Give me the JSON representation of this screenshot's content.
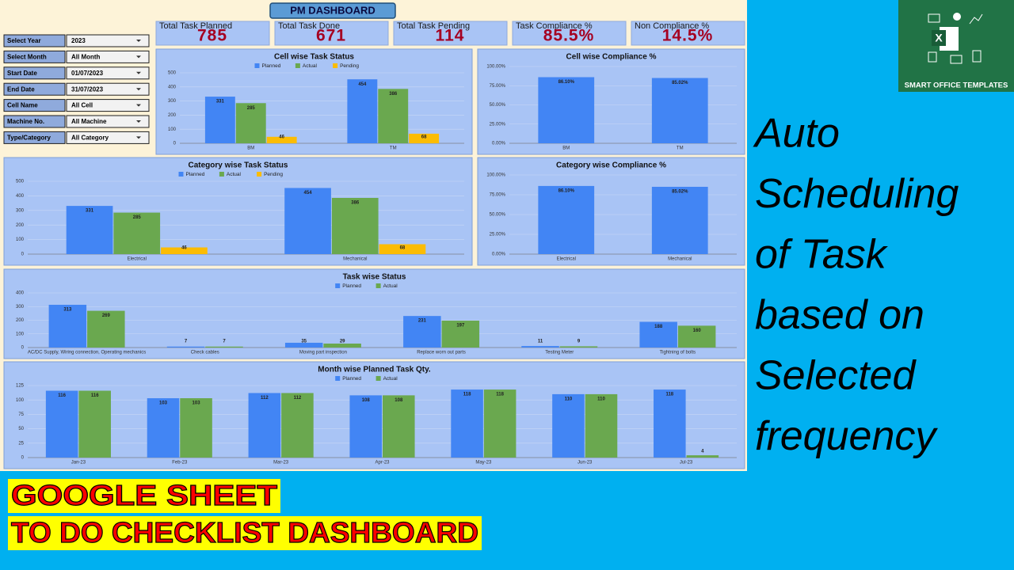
{
  "dashboard_title": "PM DASHBOARD",
  "kpis": [
    {
      "label": "Total Task Planned",
      "value": 785
    },
    {
      "label": "Total Task Done",
      "value": 671
    },
    {
      "label": "Total Task Pending",
      "value": 114
    },
    {
      "label": "Task Compliance %",
      "value": "85.5%"
    },
    {
      "label": "Non Compliance %",
      "value": "14.5%"
    }
  ],
  "filters": [
    {
      "label": "Select Year",
      "value": "2023"
    },
    {
      "label": "Select Month",
      "value": "All Month"
    },
    {
      "label": "Start Date",
      "value": "01/07/2023"
    },
    {
      "label": "End Date",
      "value": "31/07/2023"
    },
    {
      "label": "Cell Name",
      "value": "All Cell"
    },
    {
      "label": "Machine No.",
      "value": "All Machine"
    },
    {
      "label": "Type/Category",
      "value": "All Category"
    }
  ],
  "chart_data": [
    {
      "type": "bar",
      "title": "Cell wise Task Status",
      "categories": [
        "BM",
        "TM"
      ],
      "series": [
        {
          "name": "Planned",
          "color": "#4285f4",
          "values": [
            331,
            454
          ]
        },
        {
          "name": "Actual",
          "color": "#6aa84f",
          "values": [
            285,
            386
          ]
        },
        {
          "name": "Pending",
          "color": "#fbbc04",
          "values": [
            46,
            68
          ]
        }
      ],
      "ylim": [
        0,
        500
      ],
      "yticks": [
        0,
        100,
        200,
        300,
        400,
        500
      ],
      "grid": true
    },
    {
      "type": "bar",
      "title": "Cell wise Compliance %",
      "categories": [
        "BM",
        "TM"
      ],
      "values": [
        86.1,
        85.02
      ],
      "value_labels": [
        "86.10%",
        "85.02%"
      ],
      "color": "#4285f4",
      "ylim": [
        0,
        100
      ],
      "yticks": [
        {
          "value": 0,
          "label": "0.00%"
        },
        {
          "value": 25,
          "label": "25.00%"
        },
        {
          "value": 50,
          "label": "50.00%"
        },
        {
          "value": 75,
          "label": "75.00%"
        },
        {
          "value": 100,
          "label": "100.00%"
        }
      ],
      "grid": true
    },
    {
      "type": "bar",
      "title": "Category wise Task Status",
      "categories": [
        "Electrical",
        "Mechanical"
      ],
      "series": [
        {
          "name": "Planned",
          "color": "#4285f4",
          "values": [
            331,
            454
          ]
        },
        {
          "name": "Actual",
          "color": "#6aa84f",
          "values": [
            285,
            386
          ]
        },
        {
          "name": "Pending",
          "color": "#fbbc04",
          "values": [
            46,
            68
          ]
        }
      ],
      "ylim": [
        0,
        500
      ],
      "yticks": [
        0,
        100,
        200,
        300,
        400,
        500
      ],
      "grid": true
    },
    {
      "type": "bar",
      "title": "Category wise Compliance %",
      "categories": [
        "Electrical",
        "Mechanical"
      ],
      "values": [
        86.1,
        85.02
      ],
      "value_labels": [
        "86.10%",
        "85.02%"
      ],
      "color": "#4285f4",
      "ylim": [
        0,
        100
      ],
      "yticks": [
        {
          "value": 0,
          "label": "0.00%"
        },
        {
          "value": 25,
          "label": "25.00%"
        },
        {
          "value": 50,
          "label": "50.00%"
        },
        {
          "value": 75,
          "label": "75.00%"
        },
        {
          "value": 100,
          "label": "100.00%"
        }
      ],
      "grid": true
    },
    {
      "type": "bar",
      "title": "Task  wise Status",
      "categories": [
        "AC/DC Supply, Wiring connection, Operating mechanics",
        "Check cables",
        "Moving part inspection",
        "Replace worn out parts",
        "Testing Meter",
        "Tightning of bolts"
      ],
      "series": [
        {
          "name": "Planned",
          "color": "#4285f4",
          "values": [
            313,
            7,
            35,
            231,
            11,
            188
          ]
        },
        {
          "name": "Actual",
          "color": "#6aa84f",
          "values": [
            269,
            7,
            29,
            197,
            9,
            160
          ]
        }
      ],
      "ylim": [
        0,
        400
      ],
      "yticks": [
        0,
        100,
        200,
        300,
        400
      ],
      "grid": true
    },
    {
      "type": "bar",
      "title": "Month wise Planned Task Qty.",
      "categories": [
        "Jan-23",
        "Feb-23",
        "Mar-23",
        "Apr-23",
        "May-23",
        "Jun-23",
        "Jul-23"
      ],
      "series": [
        {
          "name": "Planned",
          "color": "#4285f4",
          "values": [
            116,
            103,
            112,
            108,
            118,
            110,
            118
          ]
        },
        {
          "name": "Actual",
          "color": "#6aa84f",
          "values": [
            116,
            103,
            112,
            108,
            118,
            110,
            4
          ]
        }
      ],
      "ylim": [
        0,
        125
      ],
      "yticks": [
        0,
        25,
        50,
        75,
        100,
        125
      ],
      "grid": true
    }
  ],
  "side_text": [
    "Auto",
    "Scheduling",
    "of Task",
    "based on",
    "Selected",
    "frequency"
  ],
  "logo_text": "SMART OFFICE TEMPLATES",
  "banner": [
    "GOOGLE SHEET",
    "TO DO CHECKLIST DASHBOARD"
  ]
}
